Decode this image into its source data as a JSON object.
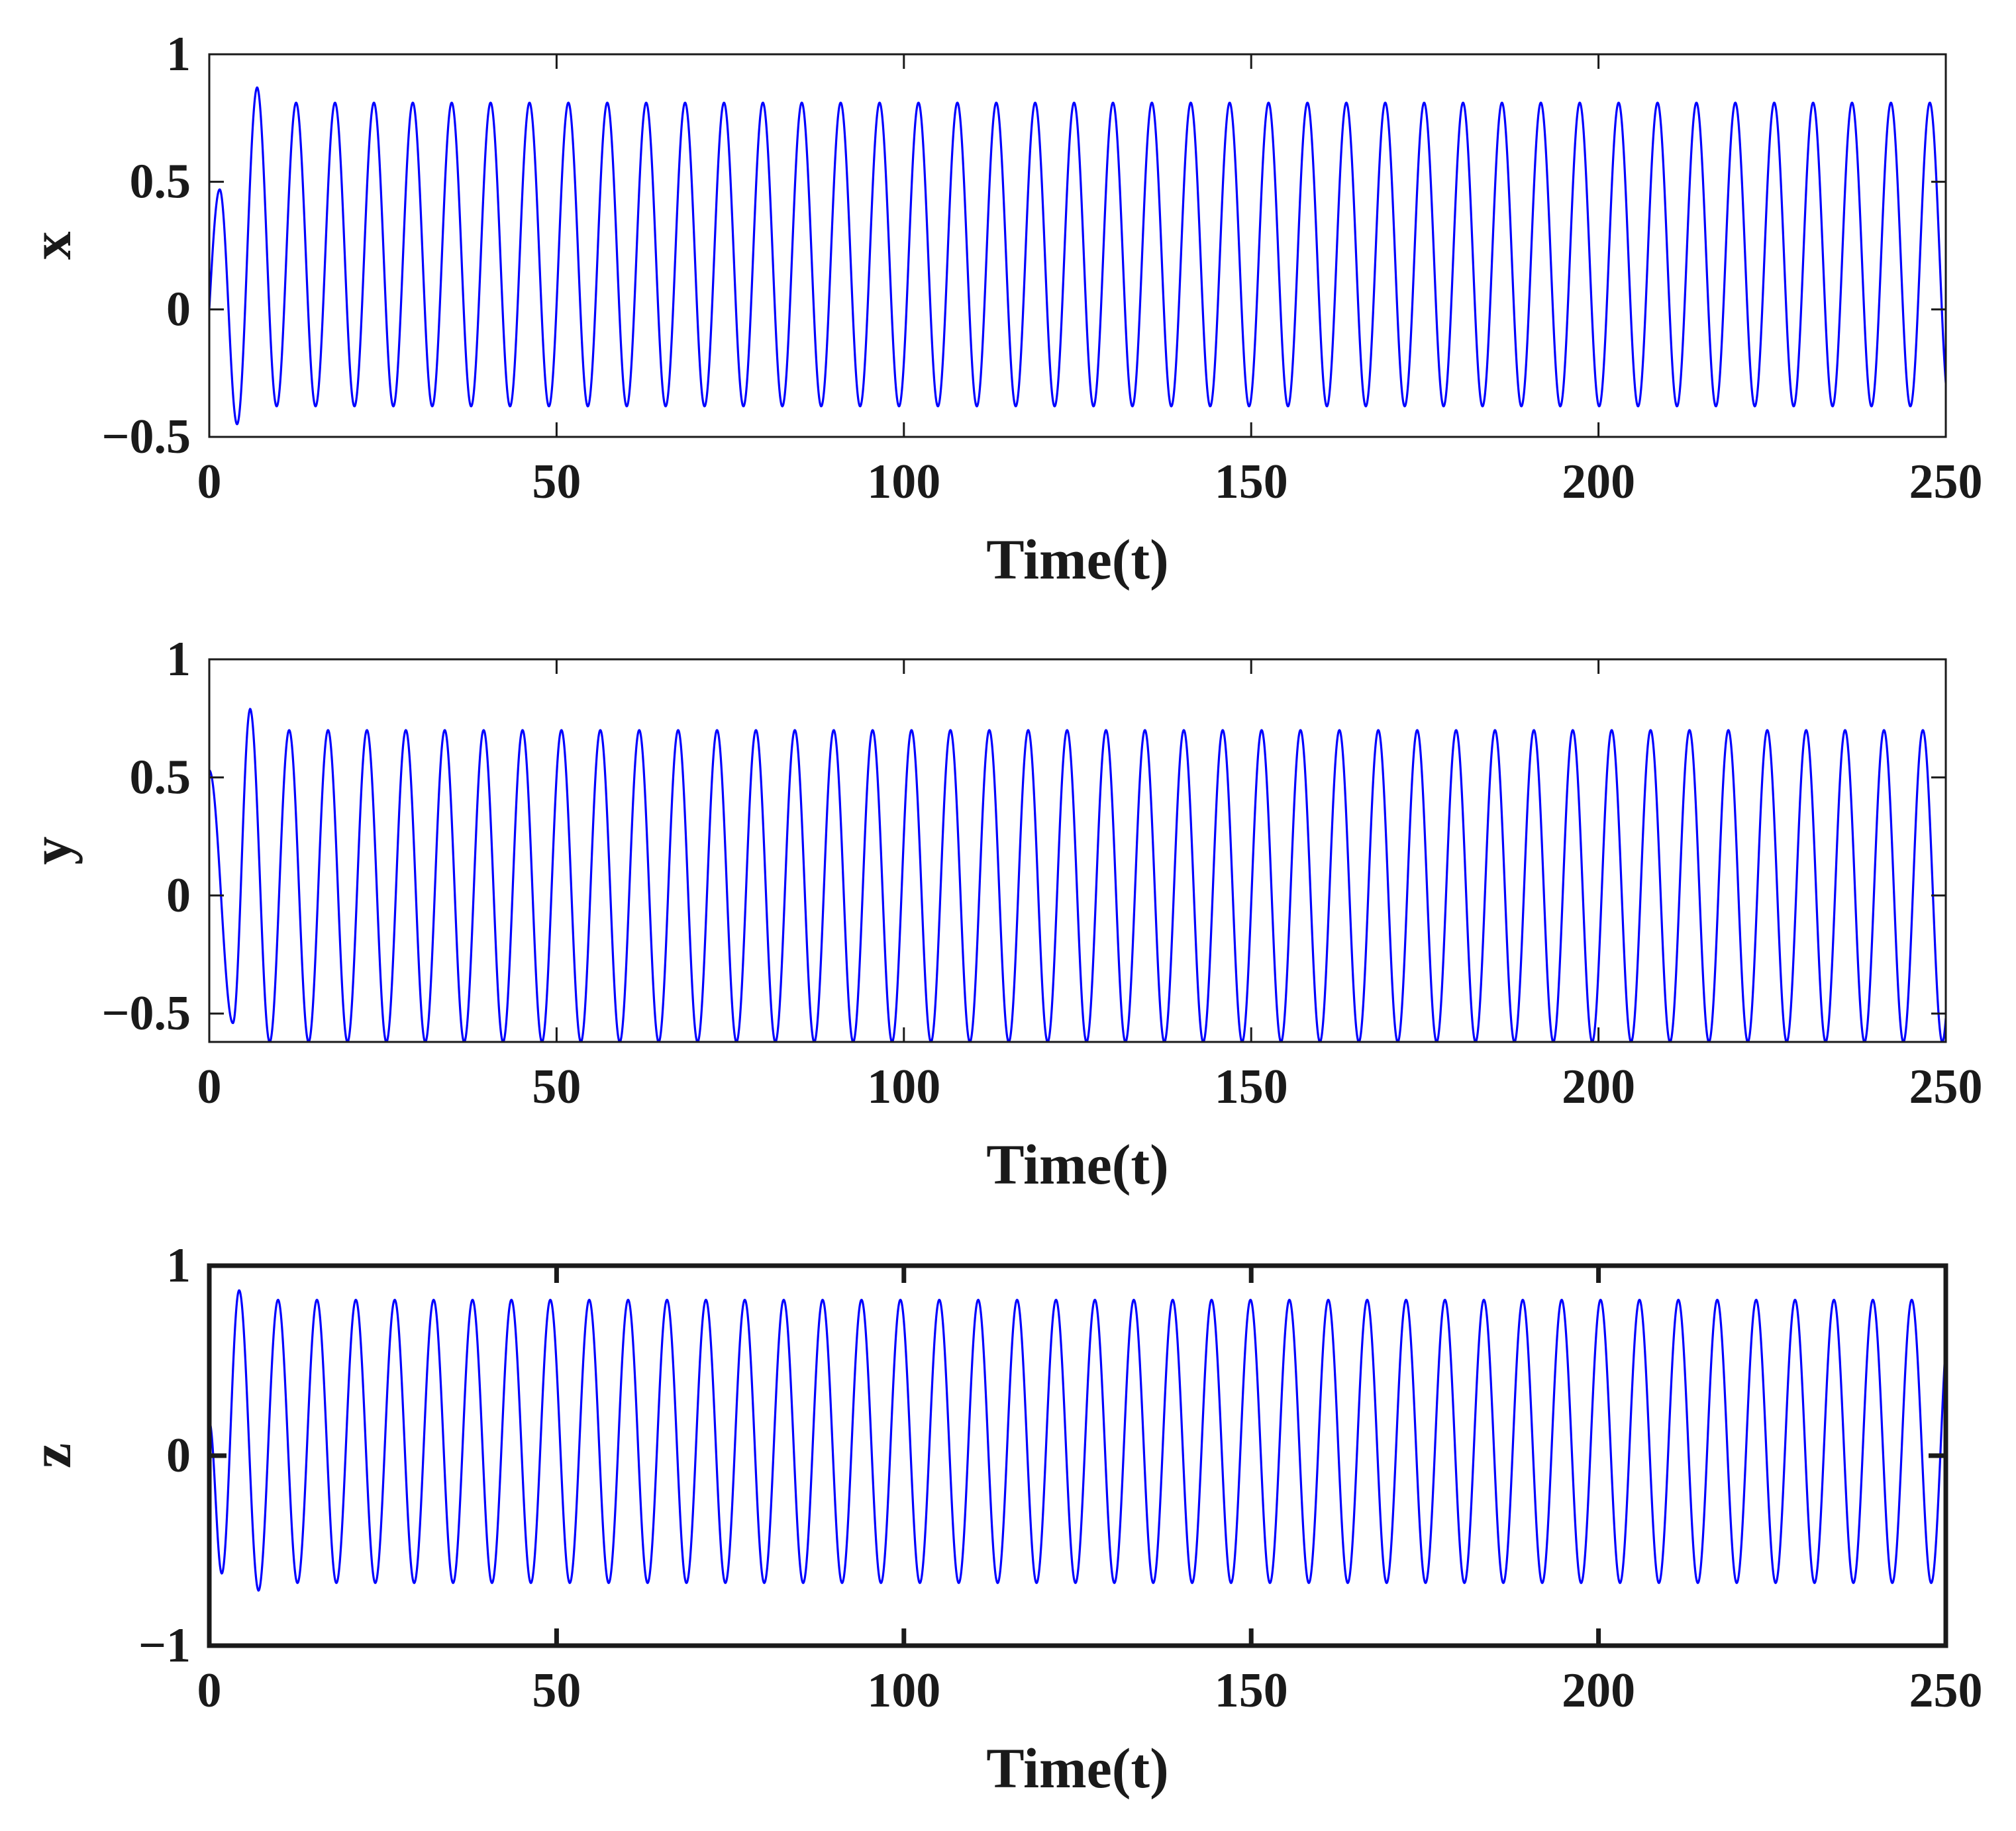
{
  "chart_data": [
    {
      "type": "line",
      "xlabel": "Time(t)",
      "ylabel": "x",
      "xlim": [
        0,
        250
      ],
      "ylim": [
        -0.5,
        1
      ],
      "xticks": [
        0,
        50,
        100,
        150,
        200,
        250
      ],
      "yticks": [
        -0.5,
        0,
        0.5,
        1
      ],
      "xtick_labels": [
        "0",
        "50",
        "100",
        "150",
        "200",
        "250"
      ],
      "ytick_labels": [
        "−0.5",
        "0",
        "0.5",
        "1"
      ],
      "color": "#0000ff",
      "series": [
        {
          "name": "x",
          "initial_value": 0,
          "transient": {
            "first_max": 0.47,
            "first_min": -0.45,
            "second_max": 0.87
          },
          "steady_max": 0.81,
          "steady_min": -0.38,
          "period": 5.6,
          "phase_offset": 0
        }
      ],
      "frame": "thin"
    },
    {
      "type": "line",
      "xlabel": "Time(t)",
      "ylabel": "y",
      "xlim": [
        0,
        250
      ],
      "ylim": [
        -0.62,
        1
      ],
      "xticks": [
        0,
        50,
        100,
        150,
        200,
        250
      ],
      "yticks": [
        -0.5,
        0,
        0.5,
        1
      ],
      "xtick_labels": [
        "0",
        "50",
        "100",
        "150",
        "200",
        "250"
      ],
      "ytick_labels": [
        "−0.5",
        "0",
        "0.5",
        "1"
      ],
      "color": "#0000ff",
      "series": [
        {
          "name": "y",
          "initial_value": 0.53,
          "transient": {
            "first_min": -0.54,
            "first_max": 0.79
          },
          "steady_max": 0.7,
          "steady_min": -0.62,
          "period": 5.6,
          "phase_offset": 1.3
        }
      ],
      "frame": "thin"
    },
    {
      "type": "line",
      "xlabel": "Time(t)",
      "ylabel": "z",
      "xlim": [
        0,
        250
      ],
      "ylim": [
        -1,
        1
      ],
      "xticks": [
        0,
        50,
        100,
        150,
        200,
        250
      ],
      "yticks": [
        -1,
        0,
        1
      ],
      "xtick_labels": [
        "0",
        "50",
        "100",
        "150",
        "200",
        "250"
      ],
      "ytick_labels": [
        "−1",
        "0",
        "1"
      ],
      "color": "#0000ff",
      "series": [
        {
          "name": "z",
          "initial_value": 0.18,
          "transient": {
            "first_min": -0.62,
            "first_max": 0.87,
            "second_min": -0.71
          },
          "steady_max": 0.82,
          "steady_min": -0.67,
          "period": 5.6,
          "phase_offset": 2.7
        }
      ],
      "frame": "bold"
    }
  ]
}
